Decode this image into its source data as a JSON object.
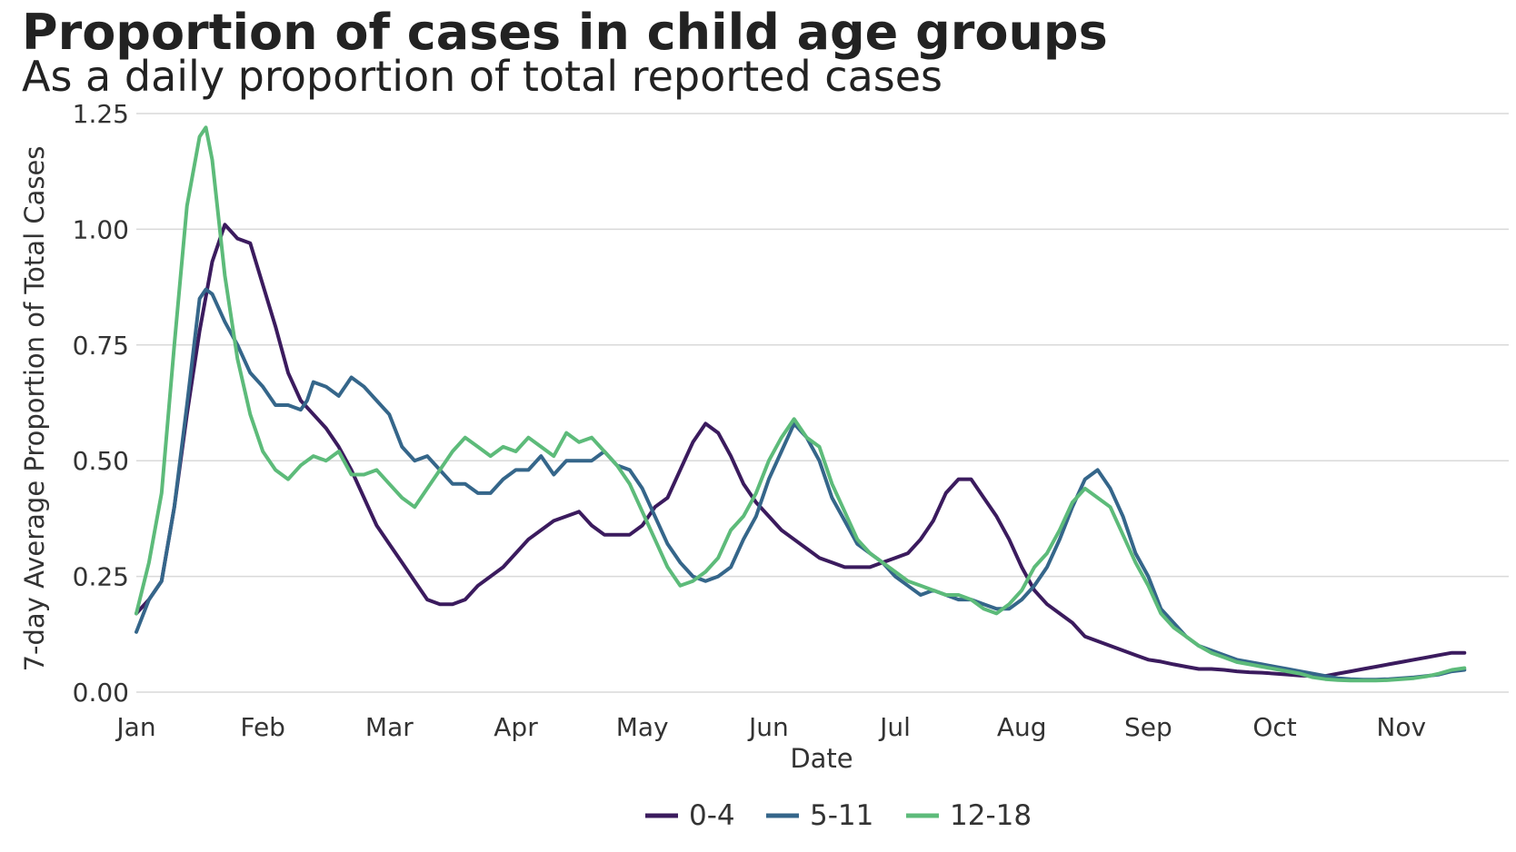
{
  "chart_data": {
    "type": "line",
    "title": "Proportion of cases in child age groups",
    "subtitle": "As a daily proportion of total reported cases",
    "xlabel": "Date",
    "ylabel": "7-day Average Proportion of Total Cases",
    "x_ticks": [
      "Jan",
      "Feb",
      "Mar",
      "Apr",
      "May",
      "Jun",
      "Jul",
      "Aug",
      "Sep",
      "Oct",
      "Nov"
    ],
    "y_ticks": [
      "0.00",
      "0.25",
      "0.50",
      "0.75",
      "1.00",
      "1.25"
    ],
    "ylim": [
      0,
      1.25
    ],
    "xlim_months": [
      0,
      10.85
    ],
    "grid": "horizontal",
    "legend_position": "bottom",
    "x_unit": "months since Jan 1",
    "series": [
      {
        "name": "0-4",
        "color": "#3b1b5e",
        "points": [
          [
            0.0,
            0.17
          ],
          [
            0.1,
            0.2
          ],
          [
            0.2,
            0.24
          ],
          [
            0.3,
            0.4
          ],
          [
            0.4,
            0.6
          ],
          [
            0.5,
            0.78
          ],
          [
            0.6,
            0.93
          ],
          [
            0.7,
            1.01
          ],
          [
            0.8,
            0.98
          ],
          [
            0.9,
            0.97
          ],
          [
            1.0,
            0.88
          ],
          [
            1.1,
            0.79
          ],
          [
            1.2,
            0.69
          ],
          [
            1.3,
            0.63
          ],
          [
            1.4,
            0.6
          ],
          [
            1.5,
            0.57
          ],
          [
            1.6,
            0.53
          ],
          [
            1.7,
            0.48
          ],
          [
            1.8,
            0.42
          ],
          [
            1.9,
            0.36
          ],
          [
            2.0,
            0.32
          ],
          [
            2.1,
            0.28
          ],
          [
            2.2,
            0.24
          ],
          [
            2.3,
            0.2
          ],
          [
            2.4,
            0.19
          ],
          [
            2.5,
            0.19
          ],
          [
            2.6,
            0.2
          ],
          [
            2.7,
            0.23
          ],
          [
            2.8,
            0.25
          ],
          [
            2.9,
            0.27
          ],
          [
            3.0,
            0.3
          ],
          [
            3.1,
            0.33
          ],
          [
            3.2,
            0.35
          ],
          [
            3.3,
            0.37
          ],
          [
            3.4,
            0.38
          ],
          [
            3.5,
            0.39
          ],
          [
            3.6,
            0.36
          ],
          [
            3.7,
            0.34
          ],
          [
            3.8,
            0.34
          ],
          [
            3.9,
            0.34
          ],
          [
            4.0,
            0.36
          ],
          [
            4.1,
            0.4
          ],
          [
            4.2,
            0.42
          ],
          [
            4.3,
            0.48
          ],
          [
            4.4,
            0.54
          ],
          [
            4.5,
            0.58
          ],
          [
            4.6,
            0.56
          ],
          [
            4.7,
            0.51
          ],
          [
            4.8,
            0.45
          ],
          [
            4.9,
            0.41
          ],
          [
            5.0,
            0.38
          ],
          [
            5.1,
            0.35
          ],
          [
            5.2,
            0.33
          ],
          [
            5.3,
            0.31
          ],
          [
            5.4,
            0.29
          ],
          [
            5.5,
            0.28
          ],
          [
            5.6,
            0.27
          ],
          [
            5.7,
            0.27
          ],
          [
            5.8,
            0.27
          ],
          [
            5.9,
            0.28
          ],
          [
            6.0,
            0.29
          ],
          [
            6.1,
            0.3
          ],
          [
            6.2,
            0.33
          ],
          [
            6.3,
            0.37
          ],
          [
            6.4,
            0.43
          ],
          [
            6.5,
            0.46
          ],
          [
            6.6,
            0.46
          ],
          [
            6.7,
            0.42
          ],
          [
            6.8,
            0.38
          ],
          [
            6.9,
            0.33
          ],
          [
            7.0,
            0.27
          ],
          [
            7.1,
            0.22
          ],
          [
            7.2,
            0.19
          ],
          [
            7.3,
            0.17
          ],
          [
            7.4,
            0.15
          ],
          [
            7.5,
            0.12
          ],
          [
            7.6,
            0.11
          ],
          [
            7.7,
            0.1
          ],
          [
            7.8,
            0.09
          ],
          [
            7.9,
            0.08
          ],
          [
            8.0,
            0.07
          ],
          [
            8.1,
            0.066
          ],
          [
            8.2,
            0.06
          ],
          [
            8.3,
            0.055
          ],
          [
            8.4,
            0.05
          ],
          [
            8.5,
            0.05
          ],
          [
            8.6,
            0.048
          ],
          [
            8.7,
            0.045
          ],
          [
            8.8,
            0.043
          ],
          [
            8.9,
            0.042
          ],
          [
            9.0,
            0.04
          ],
          [
            9.1,
            0.038
          ],
          [
            9.2,
            0.036
          ],
          [
            9.3,
            0.035
          ],
          [
            9.4,
            0.035
          ],
          [
            9.5,
            0.04
          ],
          [
            9.6,
            0.045
          ],
          [
            9.7,
            0.05
          ],
          [
            9.8,
            0.055
          ],
          [
            9.9,
            0.06
          ],
          [
            10.0,
            0.065
          ],
          [
            10.1,
            0.07
          ],
          [
            10.2,
            0.075
          ],
          [
            10.3,
            0.08
          ],
          [
            10.4,
            0.085
          ],
          [
            10.5,
            0.085
          ]
        ]
      },
      {
        "name": "5-11",
        "color": "#35668a",
        "points": [
          [
            0.0,
            0.13
          ],
          [
            0.1,
            0.2
          ],
          [
            0.2,
            0.24
          ],
          [
            0.3,
            0.4
          ],
          [
            0.4,
            0.62
          ],
          [
            0.5,
            0.85
          ],
          [
            0.55,
            0.87
          ],
          [
            0.6,
            0.86
          ],
          [
            0.7,
            0.8
          ],
          [
            0.8,
            0.75
          ],
          [
            0.9,
            0.69
          ],
          [
            1.0,
            0.66
          ],
          [
            1.1,
            0.62
          ],
          [
            1.2,
            0.62
          ],
          [
            1.3,
            0.61
          ],
          [
            1.35,
            0.63
          ],
          [
            1.4,
            0.67
          ],
          [
            1.5,
            0.66
          ],
          [
            1.6,
            0.64
          ],
          [
            1.7,
            0.68
          ],
          [
            1.8,
            0.66
          ],
          [
            1.9,
            0.63
          ],
          [
            2.0,
            0.6
          ],
          [
            2.1,
            0.53
          ],
          [
            2.2,
            0.5
          ],
          [
            2.3,
            0.51
          ],
          [
            2.4,
            0.48
          ],
          [
            2.5,
            0.45
          ],
          [
            2.6,
            0.45
          ],
          [
            2.7,
            0.43
          ],
          [
            2.8,
            0.43
          ],
          [
            2.9,
            0.46
          ],
          [
            3.0,
            0.48
          ],
          [
            3.1,
            0.48
          ],
          [
            3.2,
            0.51
          ],
          [
            3.3,
            0.47
          ],
          [
            3.4,
            0.5
          ],
          [
            3.5,
            0.5
          ],
          [
            3.6,
            0.5
          ],
          [
            3.7,
            0.52
          ],
          [
            3.8,
            0.49
          ],
          [
            3.9,
            0.48
          ],
          [
            4.0,
            0.44
          ],
          [
            4.1,
            0.38
          ],
          [
            4.2,
            0.32
          ],
          [
            4.3,
            0.28
          ],
          [
            4.4,
            0.25
          ],
          [
            4.5,
            0.24
          ],
          [
            4.6,
            0.25
          ],
          [
            4.7,
            0.27
          ],
          [
            4.8,
            0.33
          ],
          [
            4.9,
            0.38
          ],
          [
            5.0,
            0.46
          ],
          [
            5.1,
            0.52
          ],
          [
            5.2,
            0.58
          ],
          [
            5.3,
            0.55
          ],
          [
            5.4,
            0.5
          ],
          [
            5.5,
            0.42
          ],
          [
            5.6,
            0.37
          ],
          [
            5.7,
            0.32
          ],
          [
            5.8,
            0.3
          ],
          [
            5.9,
            0.28
          ],
          [
            6.0,
            0.25
          ],
          [
            6.1,
            0.23
          ],
          [
            6.2,
            0.21
          ],
          [
            6.3,
            0.22
          ],
          [
            6.4,
            0.21
          ],
          [
            6.5,
            0.2
          ],
          [
            6.6,
            0.2
          ],
          [
            6.7,
            0.19
          ],
          [
            6.8,
            0.18
          ],
          [
            6.9,
            0.18
          ],
          [
            7.0,
            0.2
          ],
          [
            7.1,
            0.23
          ],
          [
            7.2,
            0.27
          ],
          [
            7.3,
            0.33
          ],
          [
            7.4,
            0.4
          ],
          [
            7.5,
            0.46
          ],
          [
            7.6,
            0.48
          ],
          [
            7.7,
            0.44
          ],
          [
            7.8,
            0.38
          ],
          [
            7.9,
            0.3
          ],
          [
            8.0,
            0.25
          ],
          [
            8.1,
            0.18
          ],
          [
            8.2,
            0.15
          ],
          [
            8.3,
            0.12
          ],
          [
            8.4,
            0.1
          ],
          [
            8.5,
            0.09
          ],
          [
            8.6,
            0.08
          ],
          [
            8.7,
            0.07
          ],
          [
            8.8,
            0.065
          ],
          [
            8.9,
            0.06
          ],
          [
            9.0,
            0.055
          ],
          [
            9.1,
            0.05
          ],
          [
            9.2,
            0.045
          ],
          [
            9.3,
            0.04
          ],
          [
            9.4,
            0.035
          ],
          [
            9.5,
            0.03
          ],
          [
            9.6,
            0.028
          ],
          [
            9.7,
            0.027
          ],
          [
            9.8,
            0.027
          ],
          [
            9.9,
            0.028
          ],
          [
            10.0,
            0.03
          ],
          [
            10.1,
            0.032
          ],
          [
            10.2,
            0.035
          ],
          [
            10.3,
            0.038
          ],
          [
            10.4,
            0.045
          ],
          [
            10.5,
            0.048
          ]
        ]
      },
      {
        "name": "12-18",
        "color": "#5dbb7a",
        "points": [
          [
            0.0,
            0.17
          ],
          [
            0.1,
            0.28
          ],
          [
            0.2,
            0.43
          ],
          [
            0.3,
            0.75
          ],
          [
            0.4,
            1.05
          ],
          [
            0.5,
            1.2
          ],
          [
            0.55,
            1.22
          ],
          [
            0.6,
            1.15
          ],
          [
            0.7,
            0.9
          ],
          [
            0.8,
            0.72
          ],
          [
            0.9,
            0.6
          ],
          [
            1.0,
            0.52
          ],
          [
            1.1,
            0.48
          ],
          [
            1.2,
            0.46
          ],
          [
            1.3,
            0.49
          ],
          [
            1.4,
            0.51
          ],
          [
            1.5,
            0.5
          ],
          [
            1.6,
            0.52
          ],
          [
            1.7,
            0.47
          ],
          [
            1.8,
            0.47
          ],
          [
            1.9,
            0.48
          ],
          [
            2.0,
            0.45
          ],
          [
            2.1,
            0.42
          ],
          [
            2.2,
            0.4
          ],
          [
            2.3,
            0.44
          ],
          [
            2.4,
            0.48
          ],
          [
            2.5,
            0.52
          ],
          [
            2.6,
            0.55
          ],
          [
            2.7,
            0.53
          ],
          [
            2.8,
            0.51
          ],
          [
            2.9,
            0.53
          ],
          [
            3.0,
            0.52
          ],
          [
            3.1,
            0.55
          ],
          [
            3.2,
            0.53
          ],
          [
            3.3,
            0.51
          ],
          [
            3.4,
            0.56
          ],
          [
            3.5,
            0.54
          ],
          [
            3.6,
            0.55
          ],
          [
            3.7,
            0.52
          ],
          [
            3.8,
            0.49
          ],
          [
            3.9,
            0.45
          ],
          [
            4.0,
            0.39
          ],
          [
            4.1,
            0.33
          ],
          [
            4.2,
            0.27
          ],
          [
            4.3,
            0.23
          ],
          [
            4.4,
            0.24
          ],
          [
            4.5,
            0.26
          ],
          [
            4.6,
            0.29
          ],
          [
            4.7,
            0.35
          ],
          [
            4.8,
            0.38
          ],
          [
            4.9,
            0.43
          ],
          [
            5.0,
            0.5
          ],
          [
            5.1,
            0.55
          ],
          [
            5.2,
            0.59
          ],
          [
            5.3,
            0.55
          ],
          [
            5.4,
            0.53
          ],
          [
            5.5,
            0.45
          ],
          [
            5.6,
            0.39
          ],
          [
            5.7,
            0.33
          ],
          [
            5.8,
            0.3
          ],
          [
            5.9,
            0.28
          ],
          [
            6.0,
            0.26
          ],
          [
            6.1,
            0.24
          ],
          [
            6.2,
            0.23
          ],
          [
            6.3,
            0.22
          ],
          [
            6.4,
            0.21
          ],
          [
            6.5,
            0.21
          ],
          [
            6.6,
            0.2
          ],
          [
            6.7,
            0.18
          ],
          [
            6.8,
            0.17
          ],
          [
            6.9,
            0.19
          ],
          [
            7.0,
            0.22
          ],
          [
            7.1,
            0.27
          ],
          [
            7.2,
            0.3
          ],
          [
            7.3,
            0.35
          ],
          [
            7.4,
            0.41
          ],
          [
            7.5,
            0.44
          ],
          [
            7.6,
            0.42
          ],
          [
            7.7,
            0.4
          ],
          [
            7.8,
            0.34
          ],
          [
            7.9,
            0.28
          ],
          [
            8.0,
            0.23
          ],
          [
            8.1,
            0.17
          ],
          [
            8.2,
            0.14
          ],
          [
            8.3,
            0.12
          ],
          [
            8.4,
            0.1
          ],
          [
            8.5,
            0.085
          ],
          [
            8.6,
            0.075
          ],
          [
            8.7,
            0.065
          ],
          [
            8.8,
            0.06
          ],
          [
            8.9,
            0.055
          ],
          [
            9.0,
            0.05
          ],
          [
            9.1,
            0.045
          ],
          [
            9.2,
            0.04
          ],
          [
            9.3,
            0.032
          ],
          [
            9.4,
            0.028
          ],
          [
            9.5,
            0.026
          ],
          [
            9.6,
            0.025
          ],
          [
            9.7,
            0.025
          ],
          [
            9.8,
            0.025
          ],
          [
            9.9,
            0.026
          ],
          [
            10.0,
            0.028
          ],
          [
            10.1,
            0.03
          ],
          [
            10.2,
            0.034
          ],
          [
            10.3,
            0.04
          ],
          [
            10.4,
            0.048
          ],
          [
            10.5,
            0.052
          ]
        ]
      }
    ]
  }
}
